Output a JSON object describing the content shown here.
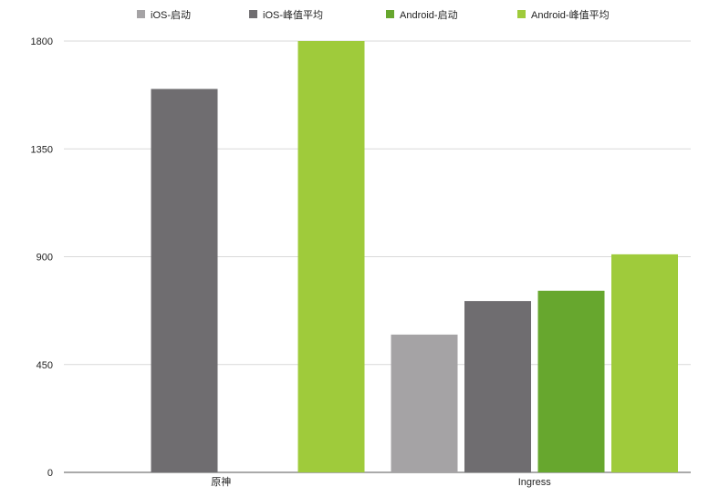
{
  "chart_data": {
    "type": "bar",
    "title": "",
    "xlabel": "",
    "ylabel": "",
    "categories": [
      "原神",
      "Ingress"
    ],
    "series": [
      {
        "name": "iOS-启动",
        "color": "#a5a3a5",
        "values": [
          0,
          575
        ]
      },
      {
        "name": "iOS-峰值平均",
        "color": "#6f6d70",
        "values": [
          1600,
          715
        ]
      },
      {
        "name": "Android-启动",
        "color": "#67a72e",
        "values": [
          0,
          758
        ]
      },
      {
        "name": "Android-峰值平均",
        "color": "#9fcb3b",
        "values": [
          1800,
          910
        ]
      }
    ],
    "ylim": [
      0,
      1800
    ],
    "yticks": [
      0,
      450,
      900,
      1350,
      1800
    ],
    "grid": true,
    "legend": "top"
  }
}
